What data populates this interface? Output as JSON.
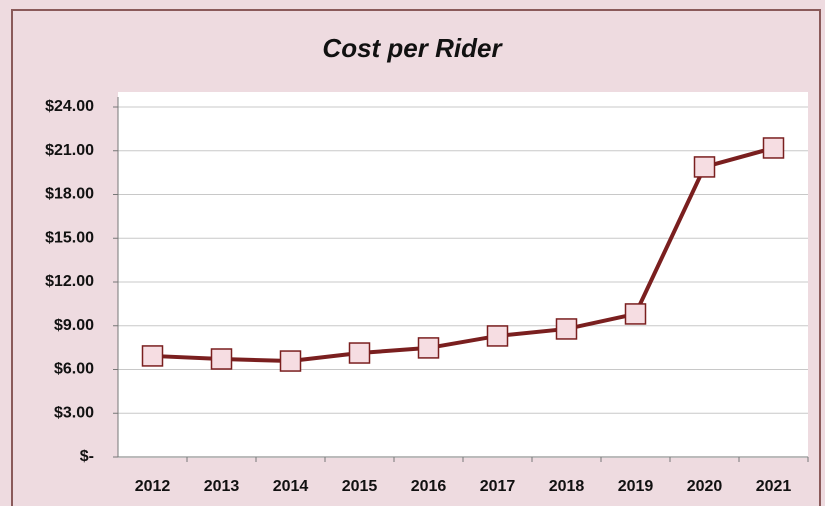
{
  "chart_data": {
    "type": "line",
    "title": "Cost per Rider",
    "categories": [
      "2012",
      "2013",
      "2014",
      "2015",
      "2016",
      "2017",
      "2018",
      "2019",
      "2020",
      "2021"
    ],
    "values": [
      6.93,
      6.72,
      6.58,
      7.13,
      7.48,
      8.3,
      8.78,
      9.81,
      19.89,
      21.19
    ],
    "color": "#7a1f1f",
    "marker_color": "#f6dde2",
    "ylim": [
      0,
      24
    ],
    "yticks": [
      {
        "value": 0,
        "label": "$-"
      },
      {
        "value": 3,
        "label": "$3.00"
      },
      {
        "value": 6,
        "label": "$6.00"
      },
      {
        "value": 9,
        "label": "$9.00"
      },
      {
        "value": 12,
        "label": "$12.00"
      },
      {
        "value": 15,
        "label": "$15.00"
      },
      {
        "value": 18,
        "label": "$18.00"
      },
      {
        "value": 21,
        "label": "$21.00"
      },
      {
        "value": 24,
        "label": "$24.00"
      }
    ],
    "grid": true
  }
}
